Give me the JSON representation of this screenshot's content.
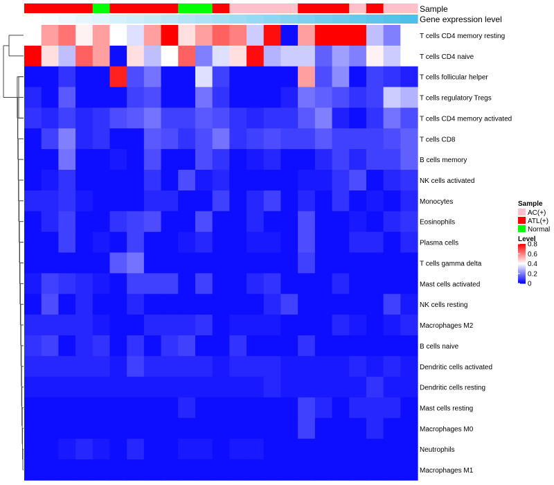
{
  "chart_data": {
    "type": "heatmap",
    "title": "",
    "annotation_rows": [
      {
        "name": "Sample",
        "values": [
          "ATL(+)",
          "ATL(+)",
          "ATL(+)",
          "ATL(+)",
          "Normal",
          "ATL(+)",
          "ATL(+)",
          "ATL(+)",
          "ATL(+)",
          "Normal",
          "Normal",
          "ATL(+)",
          "AC(+)",
          "AC(+)",
          "AC(+)",
          "AC(+)",
          "ATL(+)",
          "ATL(+)",
          "ATL(+)",
          "AC(+)",
          "ATL(+)",
          "AC(+)",
          "AC(+)"
        ]
      },
      {
        "name": "Gene expression level",
        "values": [
          0.0,
          0.03,
          0.06,
          0.09,
          0.12,
          0.15,
          0.18,
          0.22,
          0.25,
          0.28,
          0.31,
          0.34,
          0.37,
          0.4,
          0.43,
          0.46,
          0.49,
          0.52,
          0.55,
          0.58,
          0.61,
          0.64,
          0.67
        ]
      }
    ],
    "annotation_colors": {
      "Sample": {
        "AC(+)": "#ffc0cb",
        "ATL(+)": "#ff0000",
        "Normal": "#00ff00"
      },
      "Gene expression level": {
        "low": "#ffffff",
        "high": "#4dbfe9"
      }
    },
    "rows": [
      "T cells CD4 memory resting",
      "T cells CD4 naive",
      "T cells follicular helper",
      "T cells regulatory  Tregs",
      "T cells CD4 memory activated",
      "T cells CD8",
      "B cells memory",
      "NK cells activated",
      "Monocytes",
      "Eosinophils",
      "Plasma cells",
      "T cells gamma delta",
      "Mast cells activated",
      "NK cells resting",
      "Macrophages M2",
      "B cells naive",
      "Dendritic cells activated",
      "Dendritic cells resting",
      "Mast cells resting",
      "Macrophages M0",
      "Neutrophils",
      "Macrophages M1"
    ],
    "values": [
      [
        0.4,
        0.55,
        0.62,
        0.42,
        0.55,
        0.4,
        0.35,
        0.55,
        0.8,
        0.45,
        0.55,
        0.65,
        0.6,
        0.32,
        0.78,
        0.02,
        0.55,
        0.8,
        0.8,
        0.8,
        0.3,
        0.2,
        0.4
      ],
      [
        0.8,
        0.45,
        0.3,
        0.65,
        0.55,
        0.02,
        0.45,
        0.3,
        0.4,
        0.65,
        0.2,
        0.35,
        0.45,
        0.78,
        0.28,
        0.32,
        0.32,
        0.15,
        0.25,
        0.2,
        0.42,
        0.32,
        0.4
      ],
      [
        0.02,
        0.02,
        0.08,
        0.02,
        0.02,
        0.75,
        0.12,
        0.18,
        0.02,
        0.02,
        0.35,
        0.1,
        0.02,
        0.02,
        0.02,
        0.02,
        0.55,
        0.12,
        0.22,
        0.02,
        0.1,
        0.08,
        0.05
      ],
      [
        0.06,
        0.02,
        0.14,
        0.02,
        0.02,
        0.02,
        0.1,
        0.12,
        0.02,
        0.02,
        0.18,
        0.08,
        0.02,
        0.02,
        0.02,
        0.05,
        0.18,
        0.15,
        0.12,
        0.08,
        0.1,
        0.32,
        0.28
      ],
      [
        0.08,
        0.06,
        0.1,
        0.06,
        0.08,
        0.12,
        0.14,
        0.18,
        0.1,
        0.1,
        0.14,
        0.12,
        0.08,
        0.06,
        0.08,
        0.08,
        0.14,
        0.2,
        0.05,
        0.02,
        0.08,
        0.18,
        0.12
      ],
      [
        0.02,
        0.1,
        0.2,
        0.06,
        0.08,
        0.02,
        0.02,
        0.14,
        0.12,
        0.08,
        0.12,
        0.18,
        0.08,
        0.1,
        0.12,
        0.1,
        0.1,
        0.14,
        0.1,
        0.1,
        0.1,
        0.12,
        0.15
      ],
      [
        0.02,
        0.02,
        0.18,
        0.02,
        0.02,
        0.04,
        0.02,
        0.12,
        0.02,
        0.02,
        0.12,
        0.08,
        0.02,
        0.04,
        0.06,
        0.02,
        0.02,
        0.06,
        0.1,
        0.06,
        0.1,
        0.1,
        0.15
      ],
      [
        0.02,
        0.04,
        0.08,
        0.02,
        0.02,
        0.02,
        0.02,
        0.08,
        0.02,
        0.12,
        0.04,
        0.06,
        0.02,
        0.02,
        0.02,
        0.02,
        0.04,
        0.04,
        0.08,
        0.12,
        0.02,
        0.06,
        0.08
      ],
      [
        0.06,
        0.06,
        0.08,
        0.04,
        0.02,
        0.02,
        0.02,
        0.06,
        0.06,
        0.02,
        0.02,
        0.1,
        0.02,
        0.06,
        0.1,
        0.02,
        0.06,
        0.02,
        0.08,
        0.02,
        0.04,
        0.02,
        0.06
      ],
      [
        0.02,
        0.06,
        0.1,
        0.02,
        0.02,
        0.08,
        0.1,
        0.12,
        0.02,
        0.02,
        0.12,
        0.02,
        0.02,
        0.06,
        0.02,
        0.02,
        0.12,
        0.02,
        0.02,
        0.04,
        0.02,
        0.06,
        0.08
      ],
      [
        0.02,
        0.02,
        0.1,
        0.02,
        0.04,
        0.02,
        0.1,
        0.02,
        0.02,
        0.04,
        0.06,
        0.02,
        0.02,
        0.04,
        0.04,
        0.02,
        0.12,
        0.02,
        0.02,
        0.06,
        0.06,
        0.02,
        0.06
      ],
      [
        0.02,
        0.02,
        0.02,
        0.02,
        0.02,
        0.14,
        0.18,
        0.02,
        0.02,
        0.02,
        0.02,
        0.02,
        0.02,
        0.02,
        0.02,
        0.02,
        0.1,
        0.02,
        0.02,
        0.02,
        0.02,
        0.02,
        0.02
      ],
      [
        0.04,
        0.1,
        0.08,
        0.06,
        0.04,
        0.02,
        0.1,
        0.1,
        0.1,
        0.02,
        0.1,
        0.02,
        0.02,
        0.06,
        0.08,
        0.02,
        0.02,
        0.02,
        0.06,
        0.02,
        0.02,
        0.02,
        0.02
      ],
      [
        0.02,
        0.12,
        0.02,
        0.06,
        0.02,
        0.02,
        0.06,
        0.02,
        0.02,
        0.02,
        0.02,
        0.02,
        0.02,
        0.02,
        0.06,
        0.1,
        0.02,
        0.02,
        0.02,
        0.02,
        0.02,
        0.1,
        0.04
      ],
      [
        0.06,
        0.06,
        0.06,
        0.06,
        0.04,
        0.02,
        0.02,
        0.06,
        0.06,
        0.06,
        0.08,
        0.02,
        0.04,
        0.04,
        0.04,
        0.02,
        0.02,
        0.02,
        0.06,
        0.04,
        0.02,
        0.04,
        0.06
      ],
      [
        0.08,
        0.1,
        0.02,
        0.06,
        0.08,
        0.02,
        0.08,
        0.02,
        0.08,
        0.1,
        0.02,
        0.02,
        0.08,
        0.02,
        0.02,
        0.02,
        0.08,
        0.02,
        0.02,
        0.02,
        0.02,
        0.02,
        0.02
      ],
      [
        0.06,
        0.06,
        0.06,
        0.06,
        0.06,
        0.04,
        0.1,
        0.06,
        0.06,
        0.06,
        0.06,
        0.04,
        0.06,
        0.06,
        0.06,
        0.04,
        0.04,
        0.04,
        0.04,
        0.06,
        0.04,
        0.06,
        0.04
      ],
      [
        0.04,
        0.04,
        0.04,
        0.04,
        0.04,
        0.04,
        0.04,
        0.04,
        0.04,
        0.04,
        0.04,
        0.04,
        0.04,
        0.04,
        0.06,
        0.04,
        0.04,
        0.04,
        0.04,
        0.04,
        0.08,
        0.04,
        0.04
      ],
      [
        0.02,
        0.02,
        0.02,
        0.02,
        0.02,
        0.02,
        0.02,
        0.02,
        0.02,
        0.06,
        0.02,
        0.02,
        0.02,
        0.02,
        0.02,
        0.02,
        0.1,
        0.06,
        0.02,
        0.06,
        0.06,
        0.06,
        0.02
      ],
      [
        0.02,
        0.02,
        0.02,
        0.02,
        0.02,
        0.02,
        0.02,
        0.02,
        0.02,
        0.02,
        0.02,
        0.02,
        0.02,
        0.02,
        0.02,
        0.02,
        0.1,
        0.02,
        0.02,
        0.02,
        0.06,
        0.02,
        0.02
      ],
      [
        0.02,
        0.02,
        0.04,
        0.06,
        0.04,
        0.02,
        0.06,
        0.02,
        0.02,
        0.04,
        0.04,
        0.02,
        0.04,
        0.04,
        0.02,
        0.02,
        0.02,
        0.02,
        0.02,
        0.02,
        0.02,
        0.02,
        0.02
      ],
      [
        0.02,
        0.02,
        0.02,
        0.02,
        0.02,
        0.02,
        0.02,
        0.02,
        0.02,
        0.02,
        0.02,
        0.02,
        0.02,
        0.02,
        0.02,
        0.02,
        0.02,
        0.02,
        0.02,
        0.02,
        0.02,
        0.02,
        0.02
      ]
    ],
    "color_scale": {
      "min": 0,
      "mid": 0.4,
      "max": 0.8,
      "low": "#0000ff",
      "midColor": "#ffffff",
      "high": "#ff0000"
    },
    "legend": {
      "sample_title": "Sample",
      "sample_entries": [
        "AC(+)",
        "ATL(+)",
        "Normal"
      ],
      "level_title": "Level",
      "level_ticks": [
        "0.8",
        "0.6",
        "0.4",
        "0.2",
        "0"
      ]
    },
    "row_dendrogram": true,
    "legend_placement": "right"
  }
}
